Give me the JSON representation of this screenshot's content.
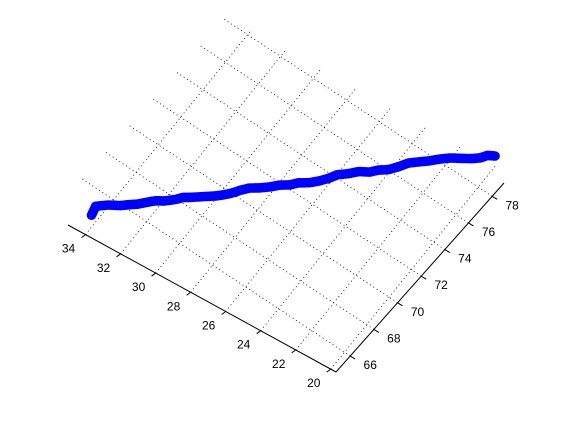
{
  "chart_data": {
    "type": "scatter",
    "projection": "3d",
    "title": "",
    "xlabel": "",
    "ylabel": "",
    "zlabel": "",
    "grid": true,
    "marker": "circle",
    "marker_color": "#0000ff",
    "axis_color": "#000000",
    "left_axis": {
      "ticks": [
        20,
        22,
        24,
        26,
        28,
        30,
        32,
        34
      ],
      "labels": [
        "20",
        "22",
        "24",
        "26",
        "28",
        "30",
        "32",
        "34"
      ],
      "range": [
        19.7,
        35.0
      ]
    },
    "right_axis": {
      "ticks": [
        66,
        68,
        70,
        72,
        74,
        76,
        78
      ],
      "labels": [
        "66",
        "68",
        "70",
        "72",
        "74",
        "76",
        "78"
      ],
      "range": [
        64.8,
        79.0
      ]
    },
    "track": {
      "right_axis_values": [
        65.9,
        66.1,
        66.4,
        66.7,
        67.0,
        67.3,
        67.6,
        67.9,
        68.1,
        68.4,
        68.6,
        68.9,
        69.3,
        69.6,
        69.9,
        70.2,
        70.5,
        70.8,
        71.1,
        71.4,
        71.7,
        72.0,
        72.3,
        72.6,
        72.9,
        73.2,
        73.5,
        73.7,
        74.0,
        74.3,
        74.6,
        74.9,
        75.2,
        75.5,
        75.8,
        76.1,
        76.4,
        76.7,
        77.0,
        77.3,
        77.6,
        77.9,
        78.1
      ],
      "left_axis_values": [
        34.4,
        34.3,
        33.8,
        33.3,
        33.0,
        32.7,
        32.4,
        32.1,
        31.7,
        31.3,
        31.0,
        30.7,
        30.3,
        29.9,
        29.6,
        29.3,
        29.0,
        28.7,
        28.3,
        27.9,
        27.6,
        27.2,
        26.9,
        26.5,
        26.2,
        25.8,
        25.5,
        25.0,
        24.6,
        24.2,
        23.9,
        23.5,
        23.1,
        22.8,
        22.4,
        22.0,
        21.6,
        21.2,
        20.8,
        20.4,
        20.1,
        19.9,
        19.6
      ],
      "vertical_values": [
        0.05,
        0.45,
        0.57,
        0.58,
        0.57,
        0.54,
        0.58,
        0.6,
        0.66,
        0.73,
        0.86,
        0.8,
        0.76,
        0.78,
        0.78,
        0.82,
        0.92,
        0.98,
        0.98,
        1.03,
        1.06,
        1.07,
        1.12,
        1.12,
        1.14,
        1.29,
        1.43,
        1.61,
        1.72,
        1.68,
        1.73,
        1.75,
        1.92,
        2.04,
        2.1,
        2.15,
        2.24,
        2.29,
        2.26,
        2.24,
        2.22,
        2.24,
        2.22
      ]
    }
  }
}
